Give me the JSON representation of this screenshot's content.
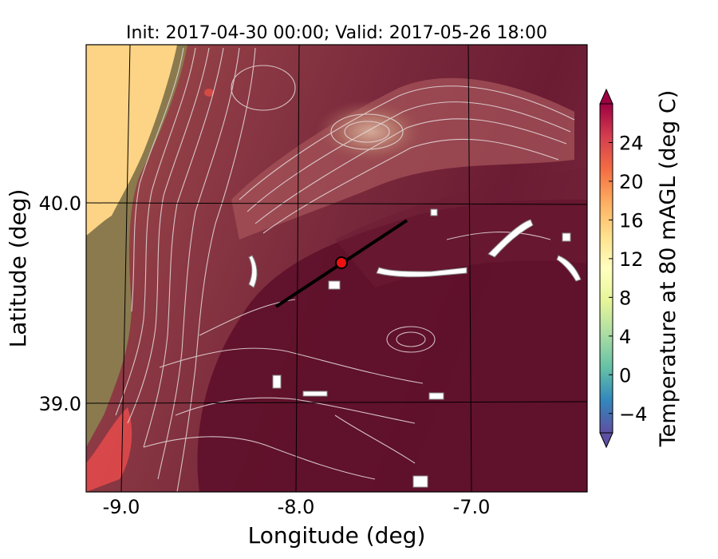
{
  "title": "Init: 2017-04-30 00:00; Valid: 2017-05-26 18:00",
  "xlabel": "Longitude (deg)",
  "ylabel": "Latitude (deg)",
  "x_ticks": [
    "-9.0",
    "-8.0",
    "-7.0"
  ],
  "y_ticks": [
    "40.0",
    "39.0"
  ],
  "colorbar": {
    "label": "Temperature at 80 mAGL (deg C)",
    "ticks": [
      "24",
      "20",
      "16",
      "12",
      "8",
      "4",
      "0",
      "−4"
    ],
    "tick_values": [
      24,
      20,
      16,
      12,
      8,
      4,
      0,
      -4
    ],
    "range": [
      -6,
      28
    ],
    "extend": "both",
    "colormap": "Spectral_r"
  },
  "map": {
    "lon_range": [
      -9.25,
      -6.35
    ],
    "lat_range": [
      38.5,
      40.7
    ],
    "gridlines": {
      "lons": [
        -9.0,
        -8.0,
        -7.0
      ],
      "lats": [
        40.0,
        39.0
      ]
    },
    "transect": {
      "start": {
        "lon": -8.15,
        "lat": 39.5
      },
      "end": {
        "lon": -7.35,
        "lat": 39.92
      }
    },
    "site_marker": {
      "lon": -7.75,
      "lat": 39.69,
      "color": "#ee1111"
    },
    "field_colors": {
      "ocean": "#fdd485",
      "coast": "#8a7a4e",
      "warm": "#8c3a44",
      "hot": "#5e0f2a",
      "contour": "#e6dddd"
    }
  }
}
